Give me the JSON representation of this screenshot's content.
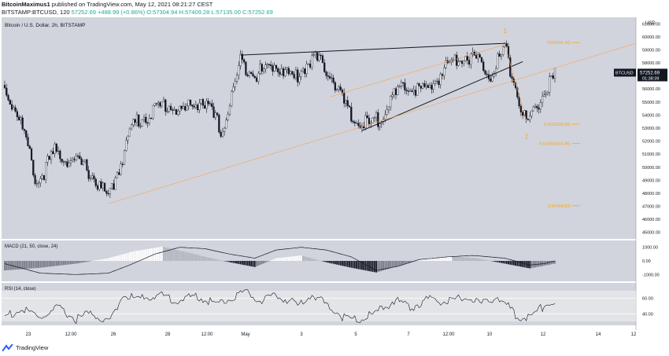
{
  "header": {
    "author": "BitcoinMaximus1",
    "published_text": "published on TradingView.com, May 12, 2021 08:21:27 CEST",
    "symbol_line": {
      "symbol": "BITSTAMP:BTCUSD, 120",
      "last": "57252.69",
      "change": "+488.99 (+0.86%)",
      "open": "O:57304.94",
      "high": "H:57409.28",
      "low": "L:57135.00",
      "close": "C:57252.69"
    }
  },
  "chart_data": [
    {
      "type": "candlestick",
      "title": "Bitcoin / U.S. Dollar, 2h, BITSTAMP",
      "currency": "USD",
      "ylim": [
        44500,
        61500
      ],
      "y_ticks": [
        45000,
        46000,
        47000,
        48000,
        49000,
        50000,
        51000,
        52000,
        53000,
        54000,
        55000,
        56000,
        57000,
        58000,
        59000,
        60000,
        61000
      ],
      "y_tick_labels": [
        "45000.00",
        "46000.00",
        "47000.00",
        "48000.00",
        "49000.00",
        "50000.00",
        "51000.00",
        "52000.00",
        "53000.00",
        "54000.00",
        "55000.00",
        "56000.00",
        "57000.00",
        "58000.00",
        "59000.00",
        "60000.00",
        "61000.00"
      ],
      "x_tick_labels": [
        "23",
        "12:00",
        "26",
        "28",
        "12:00",
        "May",
        "3",
        "5",
        "7",
        "12:00",
        "10",
        "12",
        "14",
        "12"
      ],
      "price_key_points": [
        [
          0,
          56300
        ],
        [
          8,
          54300
        ],
        [
          18,
          49100
        ],
        [
          28,
          51500
        ],
        [
          38,
          50800
        ],
        [
          46,
          50300
        ],
        [
          58,
          47900
        ],
        [
          72,
          53700
        ],
        [
          90,
          55200
        ],
        [
          100,
          54600
        ],
        [
          110,
          55600
        ],
        [
          122,
          53100
        ],
        [
          132,
          58400
        ],
        [
          142,
          57500
        ],
        [
          152,
          58300
        ],
        [
          162,
          57100
        ],
        [
          172,
          58800
        ],
        [
          182,
          57700
        ],
        [
          194,
          54000
        ],
        [
          206,
          53500
        ],
        [
          216,
          55500
        ],
        [
          226,
          56600
        ],
        [
          236,
          56100
        ],
        [
          248,
          58200
        ],
        [
          256,
          59000
        ],
        [
          264,
          58600
        ],
        [
          272,
          57600
        ],
        [
          280,
          59400
        ],
        [
          292,
          53600
        ],
        [
          302,
          56100
        ],
        [
          308,
          57300
        ]
      ],
      "candles": 309,
      "last_price_label": "BTCUSD",
      "last_price": "57252.69",
      "countdown": "01:38:39",
      "annotations": {
        "wave_labels": [
          "1",
          "2"
        ],
        "fib_levels": [
          {
            "label": "0(59556.36)",
            "price": 59556.36
          },
          {
            "label": "0.5(53300.89)",
            "price": 53300.89
          },
          {
            "label": "0.618(51824.46)",
            "price": 51824.46
          },
          {
            "label": "1(47044.83)",
            "price": 47044.83
          }
        ]
      }
    },
    {
      "type": "histogram+line",
      "title": "MACD (21, 50, close, 24)",
      "ylim": [
        -1500,
        1500
      ],
      "y_tick_labels": [
        "1000.00",
        "0.00",
        "-1000.00"
      ],
      "line_key_points": [
        [
          0,
          -200
        ],
        [
          20,
          -900
        ],
        [
          40,
          -1000
        ],
        [
          58,
          -900
        ],
        [
          70,
          -300
        ],
        [
          84,
          500
        ],
        [
          98,
          1000
        ],
        [
          112,
          900
        ],
        [
          126,
          500
        ],
        [
          140,
          200
        ],
        [
          152,
          800
        ],
        [
          166,
          1000
        ],
        [
          180,
          800
        ],
        [
          194,
          300
        ],
        [
          208,
          -700
        ],
        [
          220,
          -400
        ],
        [
          232,
          100
        ],
        [
          248,
          300
        ],
        [
          262,
          400
        ],
        [
          280,
          200
        ],
        [
          294,
          -300
        ],
        [
          302,
          -200
        ],
        [
          308,
          0
        ]
      ],
      "histogram_key_points": [
        [
          0,
          -700
        ],
        [
          20,
          -500
        ],
        [
          40,
          -200
        ],
        [
          58,
          200
        ],
        [
          72,
          700
        ],
        [
          88,
          1050
        ],
        [
          100,
          700
        ],
        [
          114,
          250
        ],
        [
          128,
          -150
        ],
        [
          140,
          -450
        ],
        [
          152,
          200
        ],
        [
          166,
          400
        ],
        [
          180,
          -100
        ],
        [
          194,
          -500
        ],
        [
          208,
          -850
        ],
        [
          222,
          -300
        ],
        [
          236,
          200
        ],
        [
          250,
          350
        ],
        [
          264,
          200
        ],
        [
          280,
          -200
        ],
        [
          294,
          -550
        ],
        [
          308,
          -200
        ]
      ]
    },
    {
      "type": "line",
      "title": "RSI (14, close)",
      "ylim": [
        25,
        80
      ],
      "y_tick_labels": [
        "60.00",
        "40.00"
      ],
      "key_points": [
        [
          0,
          40
        ],
        [
          10,
          48
        ],
        [
          20,
          38
        ],
        [
          30,
          50
        ],
        [
          40,
          36
        ],
        [
          48,
          44
        ],
        [
          58,
          32
        ],
        [
          66,
          66
        ],
        [
          76,
          62
        ],
        [
          86,
          68
        ],
        [
          96,
          60
        ],
        [
          108,
          66
        ],
        [
          118,
          56
        ],
        [
          126,
          62
        ],
        [
          134,
          72
        ],
        [
          144,
          60
        ],
        [
          154,
          66
        ],
        [
          164,
          54
        ],
        [
          172,
          68
        ],
        [
          182,
          52
        ],
        [
          190,
          38
        ],
        [
          200,
          36
        ],
        [
          208,
          44
        ],
        [
          218,
          60
        ],
        [
          228,
          52
        ],
        [
          238,
          62
        ],
        [
          248,
          58
        ],
        [
          258,
          64
        ],
        [
          268,
          56
        ],
        [
          276,
          66
        ],
        [
          286,
          42
        ],
        [
          294,
          36
        ],
        [
          300,
          50
        ],
        [
          306,
          58
        ],
        [
          308,
          54
        ]
      ]
    }
  ],
  "footer": {
    "brand": "TradingView"
  }
}
